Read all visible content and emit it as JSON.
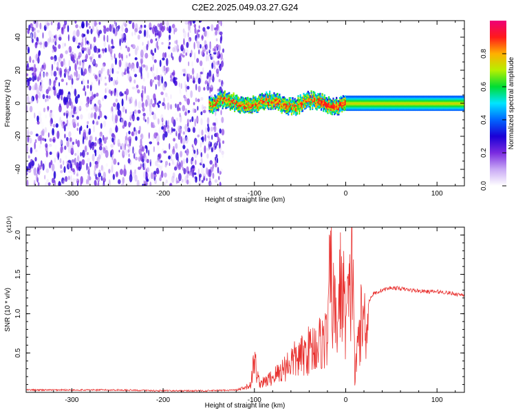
{
  "title": "C2E2.2025.049.03.27.G24",
  "colors": {
    "snr_line": "#e8302e",
    "axis": "#000000",
    "background": "#ffffff"
  },
  "chart_data": [
    {
      "type": "heatmap",
      "xlabel": "Height of straight line (km)",
      "ylabel": "Frequency (Hz)",
      "xlim": [
        -350,
        130
      ],
      "ylim": [
        -50,
        50
      ],
      "xticks": [
        -300,
        -200,
        -100,
        0,
        100
      ],
      "xtick_labels": [
        "-300",
        "-200",
        "-100",
        "0",
        "100"
      ],
      "yticks": [
        -40,
        -20,
        0,
        20,
        40
      ],
      "ytick_labels": [
        "-40",
        "-20",
        "0",
        "20",
        "40"
      ],
      "colorbar": {
        "label": "Normalized spectral amplitude",
        "range": [
          0,
          1
        ],
        "ticks": [
          0.0,
          0.2,
          0.4,
          0.6,
          0.8
        ],
        "tick_labels": [
          "0.0",
          "0.2",
          "0.4",
          "0.6",
          "0.8"
        ],
        "colormap": [
          "#ffffff",
          "#c9a9f5",
          "#7a2be0",
          "#1a00d6",
          "#0066ff",
          "#00e5ff",
          "#00dd33",
          "#b6f000",
          "#ffb000",
          "#ff1a1a",
          "#ee0077"
        ]
      },
      "regions": [
        {
          "description": "broadband noise",
          "x": [
            -350,
            -140
          ],
          "y": [
            -50,
            50
          ],
          "amplitude": [
            0.0,
            0.3
          ]
        },
        {
          "description": "signal band",
          "x": [
            -150,
            130
          ],
          "center_frequency": 0,
          "half_width": 4,
          "amplitude": [
            0.3,
            0.9
          ]
        }
      ]
    },
    {
      "type": "line",
      "xlabel": "Height of straight line (km)",
      "ylabel": "SNR (10 * v/v)",
      "y_multiplier": "(x10⁴)",
      "xlim": [
        -350,
        130
      ],
      "ylim": [
        0,
        2.1
      ],
      "xticks": [
        -300,
        -200,
        -100,
        0,
        100
      ],
      "xtick_labels": [
        "-300",
        "-200",
        "-100",
        "0",
        "100"
      ],
      "yticks": [
        0.5,
        1.0,
        1.5,
        2.0
      ],
      "ytick_labels": [
        "0.5",
        "1.0",
        "1.5",
        "2.0"
      ],
      "series": [
        {
          "x": [
            -350,
            -300,
            -250,
            -200,
            -150,
            -120,
            -110,
            -104,
            -100,
            -95,
            -90,
            -80,
            -70,
            -60,
            -50,
            -40,
            -30,
            -20,
            -17,
            -10,
            -5,
            0,
            5,
            8,
            10,
            15,
            20,
            25,
            30,
            40,
            50,
            60,
            70,
            80,
            90,
            100,
            110,
            120,
            130
          ],
          "values": [
            0.03,
            0.03,
            0.03,
            0.02,
            0.02,
            0.03,
            0.06,
            0.12,
            0.47,
            0.15,
            0.14,
            0.22,
            0.32,
            0.45,
            0.5,
            0.62,
            0.7,
            0.8,
            1.71,
            0.9,
            1.63,
            1.1,
            1.35,
            2.08,
            0.15,
            0.95,
            1.05,
            1.15,
            1.25,
            1.3,
            1.33,
            1.32,
            1.3,
            1.29,
            1.28,
            1.28,
            1.27,
            1.25,
            1.24
          ]
        }
      ]
    }
  ]
}
